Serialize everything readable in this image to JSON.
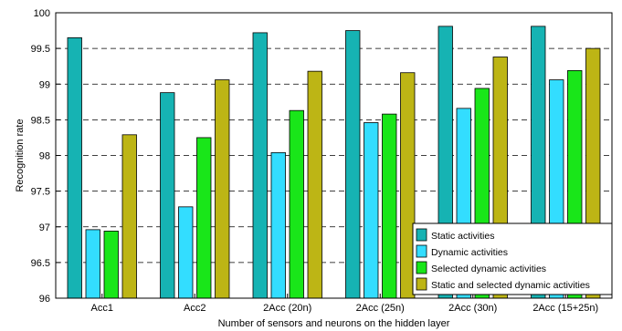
{
  "chart_data": {
    "type": "bar",
    "xlabel": "Number of sensors and neurons on the hidden layer",
    "ylabel": "Recognition rate",
    "ylim": [
      96,
      100
    ],
    "yticks": [
      96,
      96.5,
      97,
      97.5,
      98,
      98.5,
      99,
      99.5,
      100
    ],
    "ytick_labels": [
      "96",
      "96.5",
      "97",
      "97.5",
      "98",
      "98.5",
      "99",
      "99.5",
      "100"
    ],
    "grid": "horizontal dashed",
    "legend_position": "bottom-right",
    "categories": [
      "Acc1",
      "Acc2",
      "2Acc (20n)",
      "2Acc (25n)",
      "2Acc (30n)",
      "2Acc (15+25n)"
    ],
    "series": [
      {
        "name": "Static activities",
        "color": "#16b3b3",
        "values": [
          99.65,
          98.88,
          99.72,
          99.75,
          99.81,
          99.81
        ]
      },
      {
        "name": "Dynamic activities",
        "color": "#33ddff",
        "values": [
          96.96,
          97.28,
          98.04,
          98.46,
          98.66,
          99.06
        ]
      },
      {
        "name": "Selected dynamic activities",
        "color": "#19e619",
        "values": [
          96.94,
          98.25,
          98.63,
          98.58,
          98.94,
          99.19
        ]
      },
      {
        "name": "Static and selected dynamic activities",
        "color": "#bdb515",
        "values": [
          98.29,
          99.06,
          99.18,
          99.16,
          99.38,
          99.5
        ]
      }
    ]
  }
}
